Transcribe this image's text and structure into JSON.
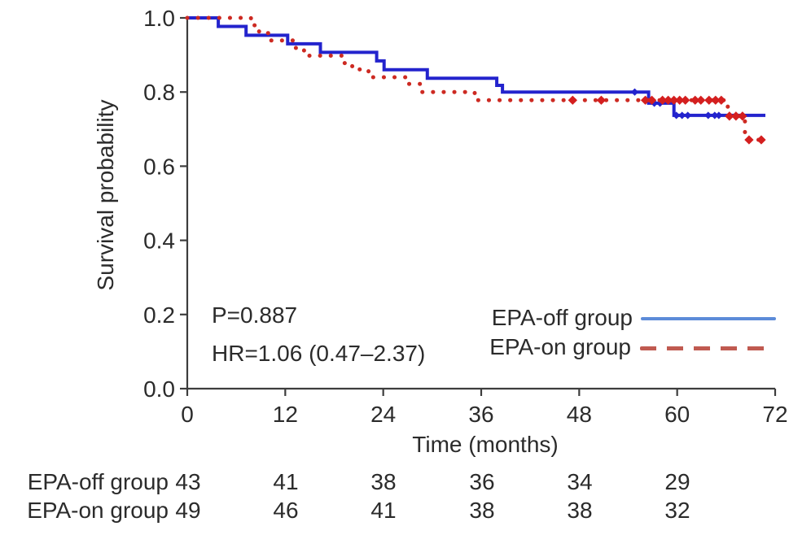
{
  "annotations": {
    "p_value": "P=0.887",
    "hazard_ratio": "HR=1.06 (0.47–2.37)"
  },
  "legend": {
    "items": [
      {
        "label": "EPA-off group",
        "line_style": "solid",
        "color": "#5c8bd8"
      },
      {
        "label": "EPA-on group",
        "line_style": "dashed",
        "color": "#c05a50"
      }
    ]
  },
  "risk_table": {
    "rows": [
      {
        "label": "EPA-off group",
        "values": [
          "43",
          "41",
          "38",
          "36",
          "34",
          "29"
        ]
      },
      {
        "label": "EPA-on group",
        "values": [
          "49",
          "46",
          "41",
          "38",
          "38",
          "32"
        ]
      }
    ]
  },
  "chart_data": {
    "type": "line",
    "subtype": "kaplan-meier-step",
    "title": "",
    "xlabel": "Time (months)",
    "ylabel": "Survival probability",
    "xlim": [
      0,
      72
    ],
    "ylim": [
      0.0,
      1.0
    ],
    "x_ticks": [
      "0",
      "12",
      "24",
      "36",
      "48",
      "60",
      "72"
    ],
    "y_ticks": [
      "0.0",
      "0.2",
      "0.4",
      "0.6",
      "0.8",
      "1.0"
    ],
    "grid": false,
    "legend_position": "lower-right-inside",
    "axis_color": "#3d3d3d",
    "series": [
      {
        "name": "EPA-off group",
        "style": "solid",
        "color": "#2323cd",
        "width": 4,
        "censor_color": "#2323cd",
        "censor_size": 6.5,
        "points": [
          [
            0,
            1.0
          ],
          [
            3.8,
            1.0
          ],
          [
            3.8,
            0.977
          ],
          [
            7.2,
            0.977
          ],
          [
            7.2,
            0.953
          ],
          [
            12.3,
            0.953
          ],
          [
            12.3,
            0.93
          ],
          [
            16.3,
            0.93
          ],
          [
            16.3,
            0.907
          ],
          [
            23.2,
            0.907
          ],
          [
            23.2,
            0.884
          ],
          [
            24.1,
            0.884
          ],
          [
            24.1,
            0.86
          ],
          [
            29.4,
            0.86
          ],
          [
            29.4,
            0.837
          ],
          [
            37.9,
            0.837
          ],
          [
            37.9,
            0.818
          ],
          [
            38.6,
            0.818
          ],
          [
            38.6,
            0.8
          ],
          [
            56.5,
            0.8
          ],
          [
            56.5,
            0.77
          ],
          [
            59.6,
            0.77
          ],
          [
            59.6,
            0.737
          ],
          [
            70.8,
            0.737
          ]
        ],
        "censor_marks": [
          [
            54.8,
            0.8
          ],
          [
            57.2,
            0.77
          ],
          [
            57.9,
            0.77
          ],
          [
            59.9,
            0.737
          ],
          [
            60.6,
            0.737
          ],
          [
            61.3,
            0.737
          ],
          [
            63.8,
            0.737
          ],
          [
            64.6,
            0.737
          ],
          [
            65.1,
            0.737
          ]
        ]
      },
      {
        "name": "EPA-on group",
        "style": "dotted",
        "color": "#cd2a22",
        "width": 5,
        "censor_color": "#d41f1f",
        "censor_size": 8,
        "points": [
          [
            0,
            1.0
          ],
          [
            7.8,
            1.0
          ],
          [
            7.8,
            0.98
          ],
          [
            8.8,
            0.98
          ],
          [
            8.8,
            0.959
          ],
          [
            10.2,
            0.959
          ],
          [
            10.2,
            0.939
          ],
          [
            13.3,
            0.939
          ],
          [
            13.3,
            0.918
          ],
          [
            14.3,
            0.918
          ],
          [
            14.3,
            0.898
          ],
          [
            19.1,
            0.898
          ],
          [
            19.1,
            0.878
          ],
          [
            20.2,
            0.878
          ],
          [
            20.2,
            0.861
          ],
          [
            22.2,
            0.861
          ],
          [
            22.2,
            0.84
          ],
          [
            26.7,
            0.84
          ],
          [
            26.7,
            0.822
          ],
          [
            28.6,
            0.822
          ],
          [
            28.6,
            0.8
          ],
          [
            35.2,
            0.8
          ],
          [
            35.2,
            0.778
          ],
          [
            66.2,
            0.778
          ],
          [
            66.2,
            0.735
          ],
          [
            68.3,
            0.735
          ],
          [
            68.3,
            0.671
          ],
          [
            70.6,
            0.671
          ]
        ],
        "censor_marks": [
          [
            47.2,
            0.778
          ],
          [
            50.7,
            0.778
          ],
          [
            56.1,
            0.778
          ],
          [
            56.9,
            0.778
          ],
          [
            58.2,
            0.778
          ],
          [
            58.9,
            0.778
          ],
          [
            59.6,
            0.778
          ],
          [
            60.3,
            0.778
          ],
          [
            61.0,
            0.778
          ],
          [
            62.2,
            0.778
          ],
          [
            62.9,
            0.778
          ],
          [
            63.9,
            0.778
          ],
          [
            64.7,
            0.778
          ],
          [
            65.4,
            0.778
          ],
          [
            66.4,
            0.735
          ],
          [
            67.2,
            0.735
          ],
          [
            68.0,
            0.735
          ],
          [
            68.8,
            0.671
          ],
          [
            70.3,
            0.671
          ]
        ]
      }
    ]
  }
}
